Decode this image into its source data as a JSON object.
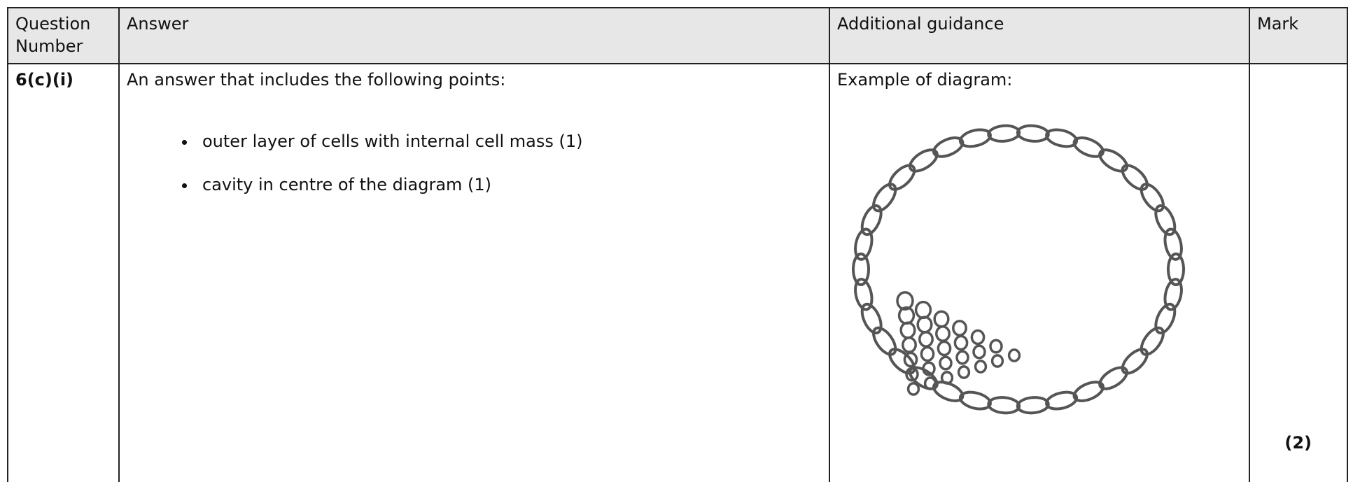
{
  "table": {
    "header": [
      "Question Number",
      "Answer",
      "Additional guidance",
      "Mark"
    ],
    "row": {
      "question": "6(c)(i)",
      "answer_intro": "An answer that includes the following points:",
      "points": [
        "outer layer of cells with internal cell mass (1)",
        "cavity in centre of the diagram (1)"
      ],
      "guidance": "Example of diagram:",
      "mark": "(2)"
    }
  }
}
